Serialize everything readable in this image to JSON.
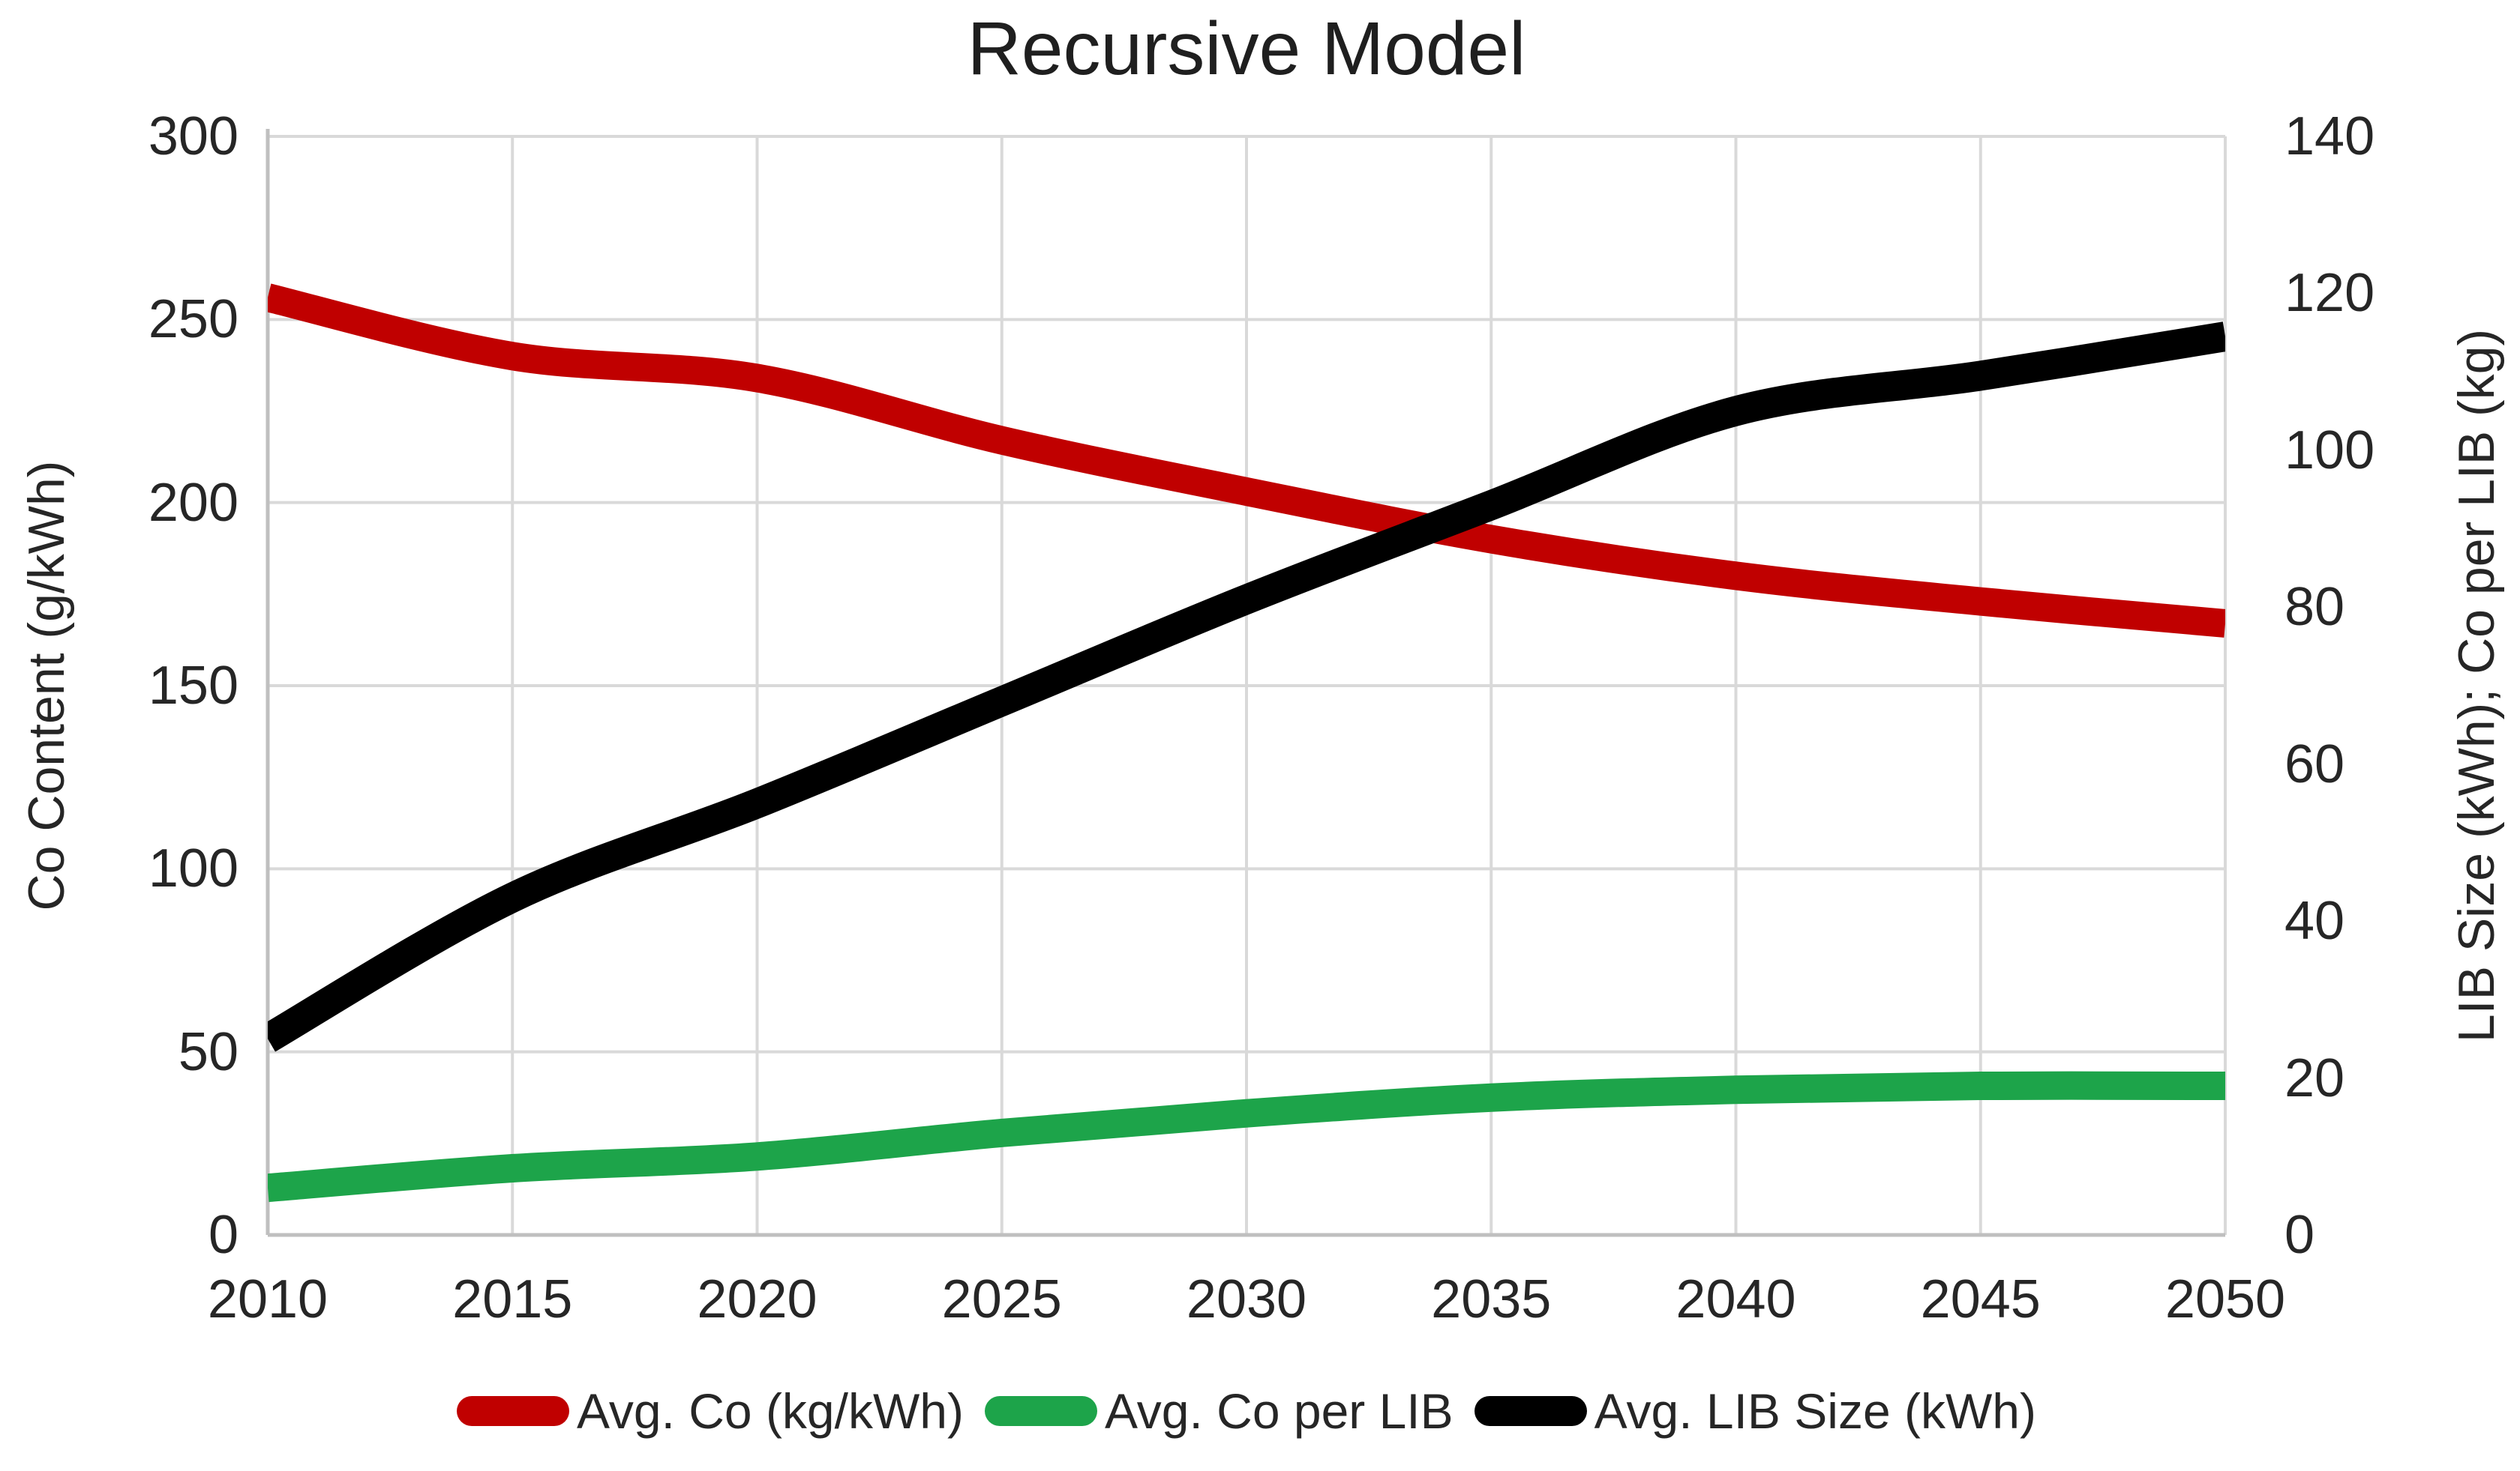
{
  "title": "Recursive Model",
  "colors": {
    "red": "#C00000",
    "green": "#1DA44A",
    "black": "#000000",
    "gridline": "#D9D9D9",
    "axis_line": "#BFBFBF",
    "text": "#262626"
  },
  "axes": {
    "x": {
      "ticks": [
        "2010",
        "2015",
        "2020",
        "2025",
        "2030",
        "2035",
        "2040",
        "2045",
        "2050"
      ],
      "min": 2010,
      "max": 2050
    },
    "y_left": {
      "label": "Co Content (g/kWh)",
      "ticks": [
        "300",
        "250",
        "200",
        "150",
        "100",
        "50",
        "0"
      ],
      "min": 0,
      "max": 300
    },
    "y_right": {
      "label": "LIB Size (kWh); Co per LIB (kg)",
      "ticks": [
        "140",
        "120",
        "100",
        "80",
        "60",
        "40",
        "20",
        "0"
      ],
      "min": 0,
      "max": 140
    }
  },
  "legend": [
    {
      "label": "Avg. Co (kg/kWh)",
      "color": "#C00000"
    },
    {
      "label": "Avg. Co per LIB",
      "color": "#1DA44A"
    },
    {
      "label": "Avg. LIB Size (kWh)",
      "color": "#000000"
    }
  ],
  "chart_data": {
    "type": "line",
    "title": "Recursive Model",
    "x": [
      2010,
      2015,
      2020,
      2025,
      2030,
      2035,
      2040,
      2045,
      2050
    ],
    "series": [
      {
        "name": "Avg. Co (kg/kWh)",
        "axis": "left",
        "color": "#C00000",
        "values": [
          256,
          240,
          234,
          217,
          203,
          190,
          180,
          173,
          167
        ]
      },
      {
        "name": "Avg. Co per LIB",
        "axis": "right",
        "color": "#1DA44A",
        "values": [
          6,
          8.5,
          10,
          13,
          15.5,
          17.5,
          18.5,
          19,
          19
        ]
      },
      {
        "name": "Avg. LIB Size (kWh)",
        "axis": "right",
        "color": "#000000",
        "values": [
          25,
          43,
          55,
          68,
          81,
          93,
          105,
          109.5,
          114.5
        ]
      }
    ],
    "xlabel": "",
    "ylabel_left": "Co Content (g/kWh)",
    "ylabel_right": "LIB Size (kWh); Co per LIB (kg)",
    "ylim_left": [
      0,
      300
    ],
    "ylim_right": [
      0,
      140
    ],
    "grid": true,
    "legend_position": "bottom"
  }
}
